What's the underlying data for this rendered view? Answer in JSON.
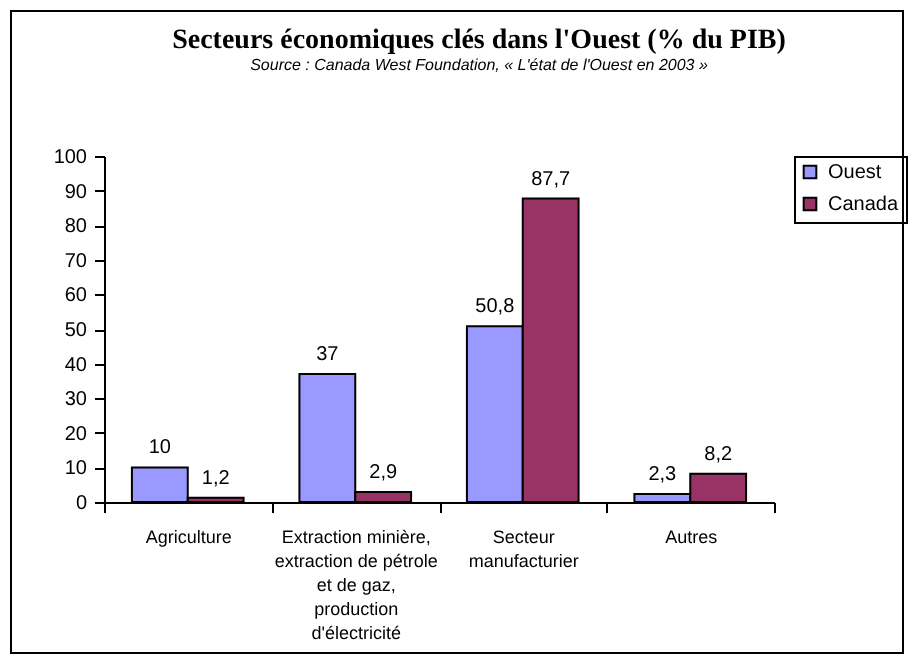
{
  "chart_data": {
    "type": "bar",
    "title": "Secteurs économiques clés dans l'Ouest (% du PIB)",
    "subtitle": "Source : Canada West Foundation, « L'état de l'Ouest en 2003 »",
    "categories": [
      "Agriculture",
      "Extraction minière,\nextraction de pétrole\net de gaz,\nproduction\nd'électricité",
      "Secteur\nmanufacturier",
      "Autres"
    ],
    "series": [
      {
        "name": "Ouest",
        "color": "#9999ff",
        "values": [
          10,
          37,
          50.8,
          2.3
        ],
        "value_labels": [
          "10",
          "37",
          "50,8",
          "2,3"
        ]
      },
      {
        "name": "Canada",
        "color": "#993366",
        "values": [
          1.2,
          2.9,
          87.7,
          8.2
        ],
        "value_labels": [
          "1,2",
          "2,9",
          "87,7",
          "8,2"
        ]
      }
    ],
    "ylim": [
      0,
      100
    ],
    "yticks": [
      0,
      10,
      20,
      30,
      40,
      50,
      60,
      70,
      80,
      90,
      100
    ],
    "grid": false,
    "legend": "right"
  }
}
